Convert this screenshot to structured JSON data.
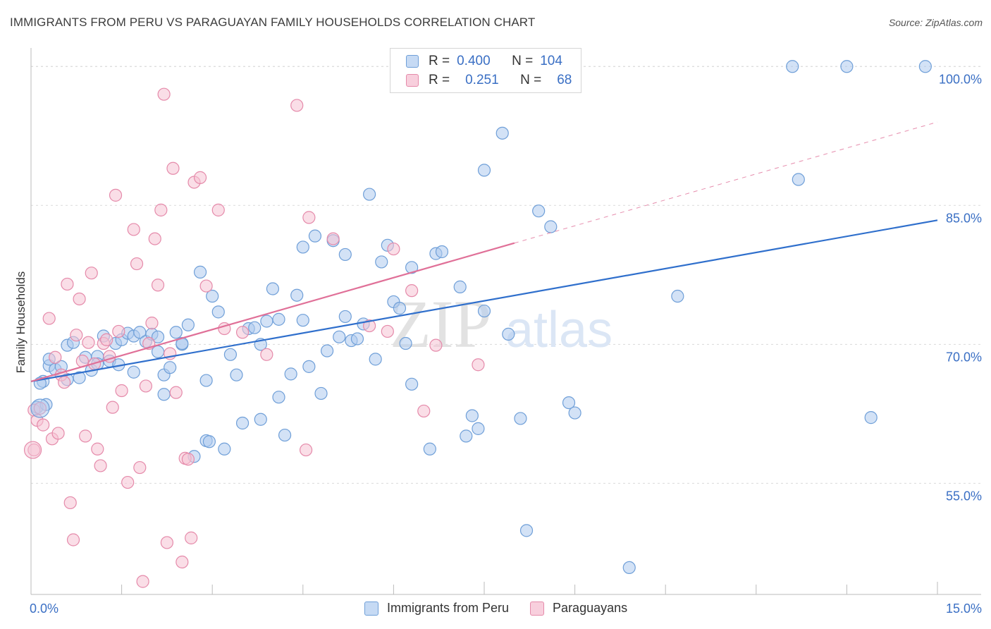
{
  "header": {
    "title": "IMMIGRANTS FROM PERU VS PARAGUAYAN FAMILY HOUSEHOLDS CORRELATION CHART",
    "source": "Source: ZipAtlas.com"
  },
  "watermark": {
    "zip": "ZIP",
    "atlas": "atlas"
  },
  "legend": {
    "rows": [
      {
        "r_label": "R =",
        "r_value": "0.400",
        "n_label": "N =",
        "n_value": "104"
      },
      {
        "r_label": "R =",
        "r_value": "0.251",
        "n_label": "N =",
        "n_value": "68"
      }
    ]
  },
  "colors": {
    "blue_fill": "#aecbef",
    "blue_stroke": "#6f9fd8",
    "blue_line": "#2f6fcc",
    "pink_fill": "#f6c2d3",
    "pink_stroke": "#e58aaa",
    "pink_line": "#e07098",
    "axis_label": "#3a6fc4",
    "grid": "#d9d9d9"
  },
  "chart_data": {
    "type": "scatter",
    "ylabel": "Family Households",
    "xlim": [
      0,
      15
    ],
    "ylim": [
      43,
      102
    ],
    "x_tick_labels": [
      "0.0%",
      "15.0%"
    ],
    "y_ticks": [
      55,
      70,
      85,
      100
    ],
    "y_tick_labels": [
      "55.0%",
      "70.0%",
      "85.0%",
      "100.0%"
    ],
    "grid": "dashed horizontal",
    "series": [
      {
        "name": "Immigrants from Peru",
        "color": "blue",
        "r": 0.4,
        "n": 104,
        "trend": {
          "x0": 0.0,
          "y0": 66.0,
          "x1": 15.0,
          "y1": 83.4,
          "dashed_from": null
        },
        "points": [
          [
            0.1,
            63.2
          ],
          [
            0.2,
            66.0
          ],
          [
            0.3,
            67.7
          ],
          [
            0.3,
            68.4
          ],
          [
            0.4,
            67.3
          ],
          [
            0.5,
            67.6
          ],
          [
            0.6,
            66.2
          ],
          [
            0.6,
            69.9
          ],
          [
            0.7,
            70.2
          ],
          [
            0.8,
            66.4
          ],
          [
            0.9,
            68.6
          ],
          [
            1.0,
            67.2
          ],
          [
            1.1,
            68.7
          ],
          [
            1.1,
            67.9
          ],
          [
            1.2,
            70.9
          ],
          [
            1.3,
            68.2
          ],
          [
            1.4,
            70.1
          ],
          [
            1.5,
            70.5
          ],
          [
            1.6,
            71.2
          ],
          [
            1.7,
            67.0
          ],
          [
            1.7,
            70.9
          ],
          [
            1.8,
            71.3
          ],
          [
            1.9,
            70.3
          ],
          [
            2.0,
            71.1
          ],
          [
            2.1,
            70.8
          ],
          [
            2.1,
            69.2
          ],
          [
            2.2,
            64.6
          ],
          [
            2.2,
            66.7
          ],
          [
            2.3,
            67.5
          ],
          [
            2.4,
            71.3
          ],
          [
            2.5,
            70.0
          ],
          [
            2.5,
            70.1
          ],
          [
            2.6,
            72.1
          ],
          [
            2.7,
            57.9
          ],
          [
            2.8,
            77.8
          ],
          [
            2.9,
            59.6
          ],
          [
            2.9,
            66.1
          ],
          [
            3.0,
            75.2
          ],
          [
            3.1,
            73.5
          ],
          [
            3.2,
            58.7
          ],
          [
            3.3,
            68.9
          ],
          [
            3.4,
            66.7
          ],
          [
            3.5,
            61.5
          ],
          [
            3.6,
            71.7
          ],
          [
            3.7,
            71.8
          ],
          [
            3.8,
            70.0
          ],
          [
            3.8,
            61.9
          ],
          [
            3.9,
            72.5
          ],
          [
            4.0,
            76.0
          ],
          [
            4.1,
            72.7
          ],
          [
            4.1,
            64.3
          ],
          [
            4.2,
            60.2
          ],
          [
            4.3,
            66.8
          ],
          [
            4.4,
            75.3
          ],
          [
            4.5,
            72.6
          ],
          [
            4.5,
            80.5
          ],
          [
            4.6,
            67.6
          ],
          [
            4.7,
            81.7
          ],
          [
            4.8,
            64.7
          ],
          [
            4.9,
            69.3
          ],
          [
            5.0,
            81.2
          ],
          [
            5.1,
            70.8
          ],
          [
            5.2,
            73.0
          ],
          [
            5.2,
            79.7
          ],
          [
            5.3,
            70.4
          ],
          [
            5.4,
            70.6
          ],
          [
            5.5,
            72.2
          ],
          [
            5.6,
            86.2
          ],
          [
            5.7,
            68.4
          ],
          [
            5.8,
            78.9
          ],
          [
            5.9,
            80.7
          ],
          [
            6.0,
            74.6
          ],
          [
            6.1,
            73.9
          ],
          [
            6.2,
            70.1
          ],
          [
            6.3,
            65.7
          ],
          [
            6.3,
            78.3
          ],
          [
            6.6,
            58.7
          ],
          [
            6.7,
            79.8
          ],
          [
            6.8,
            80.0
          ],
          [
            7.1,
            76.2
          ],
          [
            7.2,
            60.1
          ],
          [
            7.3,
            62.3
          ],
          [
            7.4,
            60.9
          ],
          [
            7.5,
            88.8
          ],
          [
            7.5,
            73.6
          ],
          [
            7.8,
            92.8
          ],
          [
            7.9,
            71.1
          ],
          [
            8.1,
            62.0
          ],
          [
            8.2,
            49.9
          ],
          [
            8.4,
            84.4
          ],
          [
            8.6,
            82.7
          ],
          [
            8.9,
            63.7
          ],
          [
            9.0,
            62.6
          ],
          [
            9.9,
            45.9
          ],
          [
            10.7,
            75.2
          ],
          [
            12.6,
            100.0
          ],
          [
            12.7,
            87.8
          ],
          [
            13.5,
            100.0
          ],
          [
            13.9,
            62.1
          ],
          [
            14.8,
            100.0
          ],
          [
            0.15,
            65.8
          ],
          [
            0.25,
            63.5
          ],
          [
            1.45,
            67.8
          ],
          [
            2.95,
            59.5
          ]
        ]
      },
      {
        "name": "Paraguayans",
        "color": "pink",
        "r": 0.251,
        "n": 68,
        "trend": {
          "x0": 0.0,
          "y0": 66.0,
          "x1": 15.0,
          "y1": 94.0,
          "dashed_from": 8.0
        },
        "points": [
          [
            0.05,
            62.9
          ],
          [
            0.1,
            61.8
          ],
          [
            0.15,
            63.1
          ],
          [
            0.2,
            61.3
          ],
          [
            0.3,
            72.8
          ],
          [
            0.35,
            59.8
          ],
          [
            0.4,
            68.6
          ],
          [
            0.45,
            60.4
          ],
          [
            0.5,
            66.7
          ],
          [
            0.55,
            65.9
          ],
          [
            0.6,
            76.5
          ],
          [
            0.65,
            52.9
          ],
          [
            0.7,
            48.9
          ],
          [
            0.75,
            71.0
          ],
          [
            0.8,
            74.9
          ],
          [
            0.85,
            68.2
          ],
          [
            0.9,
            60.1
          ],
          [
            0.95,
            70.2
          ],
          [
            1.0,
            77.7
          ],
          [
            1.05,
            67.9
          ],
          [
            1.1,
            58.7
          ],
          [
            1.15,
            56.9
          ],
          [
            1.2,
            70.1
          ],
          [
            1.25,
            70.5
          ],
          [
            1.3,
            68.7
          ],
          [
            1.35,
            63.2
          ],
          [
            1.4,
            86.1
          ],
          [
            1.45,
            71.4
          ],
          [
            1.5,
            65.0
          ],
          [
            1.6,
            55.1
          ],
          [
            1.7,
            82.4
          ],
          [
            1.75,
            78.7
          ],
          [
            1.8,
            56.7
          ],
          [
            1.85,
            44.4
          ],
          [
            1.9,
            65.5
          ],
          [
            1.95,
            70.1
          ],
          [
            2.0,
            72.3
          ],
          [
            2.05,
            81.4
          ],
          [
            2.1,
            76.4
          ],
          [
            2.15,
            84.5
          ],
          [
            2.2,
            97.0
          ],
          [
            2.25,
            48.6
          ],
          [
            2.3,
            69.0
          ],
          [
            2.35,
            89.0
          ],
          [
            2.4,
            64.8
          ],
          [
            2.5,
            46.5
          ],
          [
            2.55,
            57.7
          ],
          [
            2.6,
            57.6
          ],
          [
            2.65,
            49.1
          ],
          [
            2.7,
            87.5
          ],
          [
            2.8,
            88.0
          ],
          [
            2.9,
            76.3
          ],
          [
            3.1,
            84.5
          ],
          [
            3.2,
            71.7
          ],
          [
            3.5,
            71.3
          ],
          [
            3.9,
            68.9
          ],
          [
            4.4,
            95.8
          ],
          [
            4.55,
            58.6
          ],
          [
            4.6,
            83.7
          ],
          [
            5.0,
            81.4
          ],
          [
            5.6,
            72.0
          ],
          [
            5.9,
            71.4
          ],
          [
            6.0,
            80.3
          ],
          [
            6.3,
            75.8
          ],
          [
            6.5,
            62.8
          ],
          [
            6.7,
            69.9
          ],
          [
            7.4,
            67.8
          ],
          [
            0.05,
            58.6
          ]
        ]
      }
    ]
  },
  "bottom_legend": {
    "items": [
      {
        "label": "Immigrants from Peru"
      },
      {
        "label": "Paraguayans"
      }
    ]
  }
}
